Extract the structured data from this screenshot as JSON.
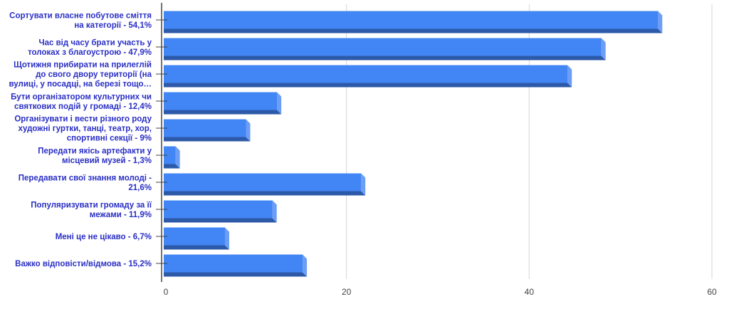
{
  "chart_data": {
    "type": "bar",
    "orientation": "horizontal",
    "style": "3d",
    "title": "",
    "xlabel": "",
    "ylabel": "",
    "categories": [
      [
        "Сортувати власне побутове сміття",
        "на категорії - 54,1%"
      ],
      [
        "Час від часу брати участь у",
        "толоках з благоустрою - 47,9%"
      ],
      [
        "Щотижня прибирати на прилеглій",
        "до свого двору території (на",
        "вулиці, у посадці, на березі тощо…"
      ],
      [
        "Бути організатором культурних чи",
        "святкових подій у громаді - 12,4%"
      ],
      [
        "Організувати і вести різного роду",
        "художні гуртки, танці, театр, хор,",
        "спортивні секції - 9%"
      ],
      [
        "Передати якісь артефакти у",
        "місцевий музей - 1,3%"
      ],
      [
        "Передавати свої знання молоді -",
        "21,6%"
      ],
      [
        "Популяризувати громаду за її",
        "межами - 11,9%"
      ],
      [
        "Мені це не цікаво - 6,7%"
      ],
      [
        "Важко відповісти/відмова - 15,2%"
      ]
    ],
    "values": [
      54.1,
      47.9,
      44.2,
      12.4,
      9,
      1.3,
      21.6,
      11.9,
      6.7,
      15.2
    ],
    "xlim": [
      0,
      60
    ],
    "xticks": [
      "0",
      "20",
      "40",
      "60"
    ],
    "grid": true,
    "legend": "none",
    "colors": {
      "bar": "#4285f4",
      "bar_bottom": "#2d5aa8",
      "bar_side": "#6d9ef6",
      "label": "#2a2fc4"
    }
  }
}
